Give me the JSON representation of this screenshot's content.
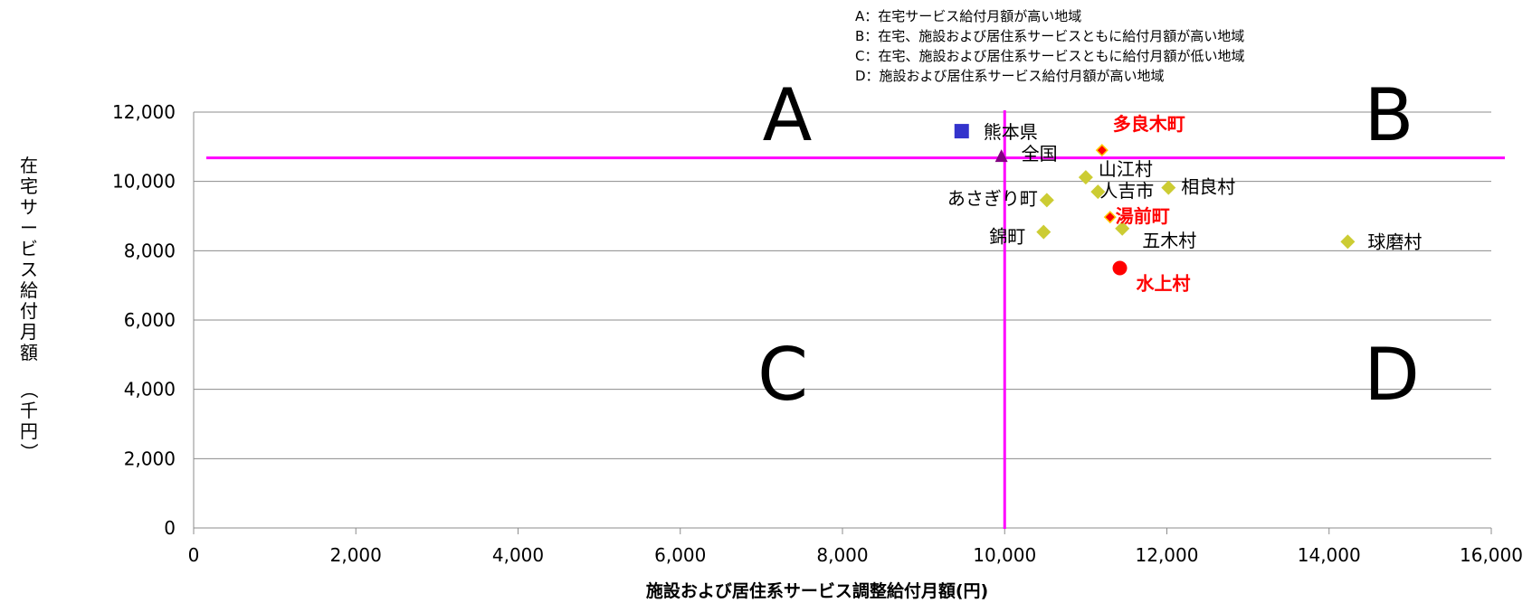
{
  "chart_data": {
    "type": "scatter",
    "title": "",
    "xlabel": "施設および居住系サービス調整給付月額(円)",
    "ylabel": "在宅サービス給付月額　（千円）",
    "xlim": [
      0,
      16000
    ],
    "ylim": [
      0,
      12000
    ],
    "x_ticks": [
      "0",
      "2,000",
      "4,000",
      "6,000",
      "8,000",
      "10,000",
      "12,000",
      "14,000",
      "16,000"
    ],
    "y_ticks": [
      "0",
      "2,000",
      "4,000",
      "6,000",
      "8,000",
      "10,000",
      "12,000"
    ],
    "grid": "horizontal",
    "reference_lines": {
      "x": 10000,
      "y": 10680,
      "color": "#ff00ff"
    },
    "quadrant_labels": [
      "A",
      "B",
      "C",
      "D"
    ],
    "legend_notes": [
      "A：在宅サービス給付月額が高い地域",
      "B：在宅、施設および居住系サービスともに給付月額が高い地域",
      "C：在宅、施設および居住系サービスともに給付月額が低い地域",
      "D：施設および居住系サービス給付月額が高い地域"
    ],
    "points": [
      {
        "label": "熊本県",
        "x": 9470,
        "y": 11450,
        "marker": "square",
        "color": "#3333cc",
        "highlight": false
      },
      {
        "label": "全国",
        "x": 9960,
        "y": 10720,
        "marker": "triangle",
        "color": "#800080",
        "highlight": false
      },
      {
        "label": "多良木町",
        "x": 11200,
        "y": 10900,
        "marker": "diamond",
        "color": "#ff0000",
        "highlight": true
      },
      {
        "label": "山江村",
        "x": 11000,
        "y": 10120,
        "marker": "diamond",
        "color": "#cccc33",
        "highlight": false
      },
      {
        "label": "人吉市",
        "x": 11150,
        "y": 9700,
        "marker": "diamond",
        "color": "#cccc33",
        "highlight": false
      },
      {
        "label": "相良村",
        "x": 12020,
        "y": 9820,
        "marker": "diamond",
        "color": "#cccc33",
        "highlight": false
      },
      {
        "label": "あさぎり町",
        "x": 10520,
        "y": 9460,
        "marker": "diamond",
        "color": "#cccc33",
        "highlight": false
      },
      {
        "label": "湯前町",
        "x": 11300,
        "y": 8970,
        "marker": "diamond",
        "color": "#ff0000",
        "highlight": true
      },
      {
        "label": "錦町",
        "x": 10480,
        "y": 8540,
        "marker": "diamond",
        "color": "#cccc33",
        "highlight": false
      },
      {
        "label": "五木村",
        "x": 11450,
        "y": 8640,
        "marker": "diamond",
        "color": "#cccc33",
        "highlight": false
      },
      {
        "label": "球磨村",
        "x": 14230,
        "y": 8260,
        "marker": "diamond",
        "color": "#cccc33",
        "highlight": false
      },
      {
        "label": "水上村",
        "x": 11420,
        "y": 7500,
        "marker": "circle",
        "color": "#ff0000",
        "highlight": true
      }
    ]
  }
}
